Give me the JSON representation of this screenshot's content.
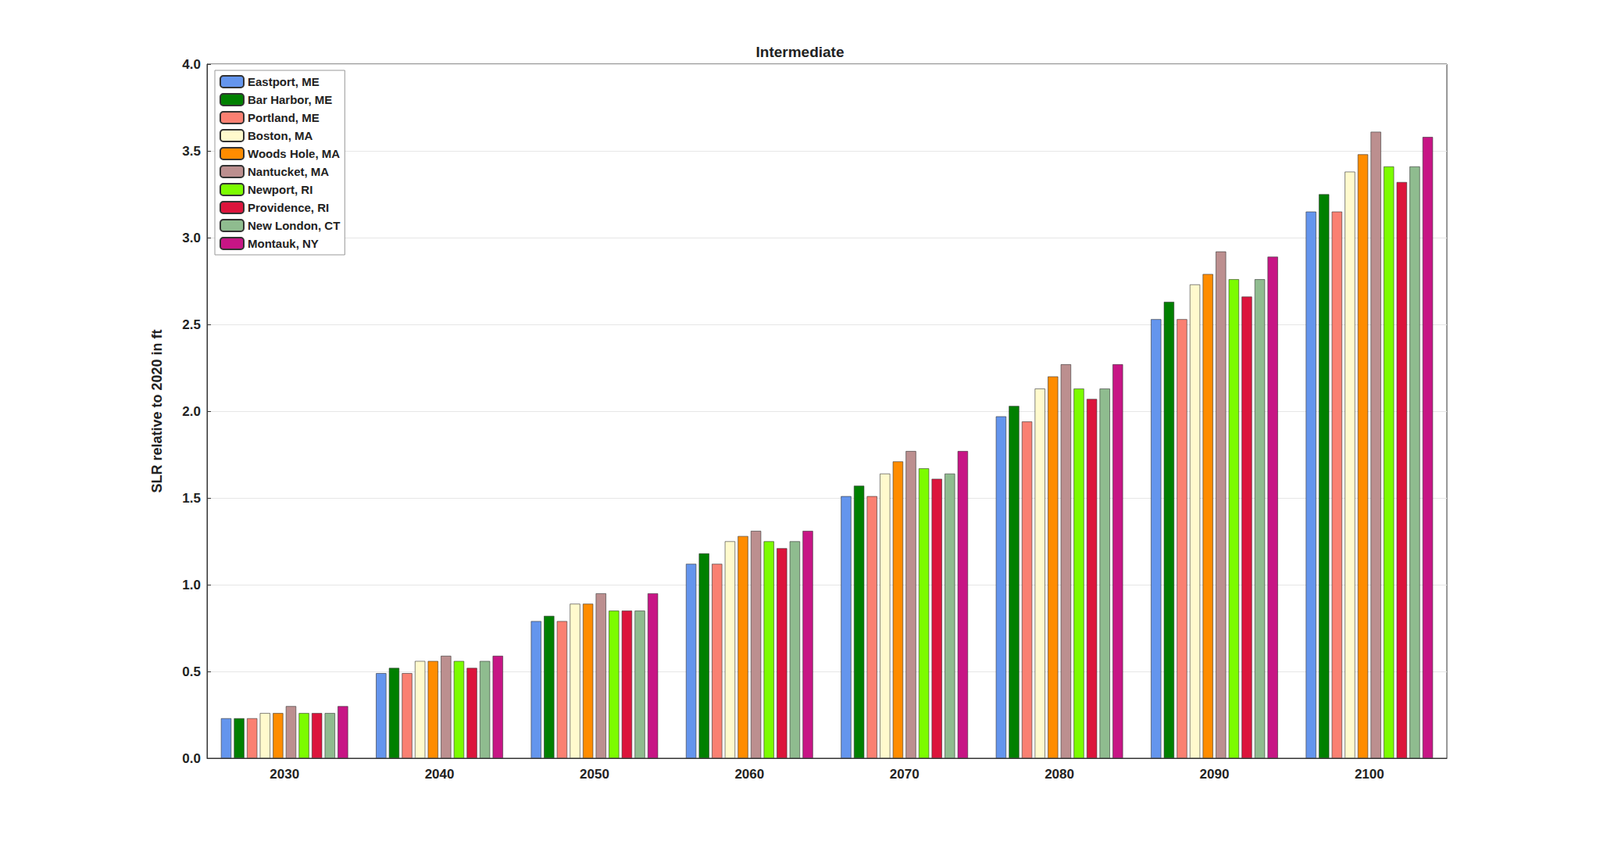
{
  "chart_data": {
    "type": "bar",
    "title": "Intermediate",
    "y_label": "SLR relative to 2020 in ft",
    "categories": [
      "2030",
      "2040",
      "2050",
      "2060",
      "2070",
      "2080",
      "2090",
      "2100"
    ],
    "series": [
      {
        "name": "Eastport, ME",
        "color": "#6495ED",
        "values": [
          0.23,
          0.49,
          0.79,
          1.12,
          1.51,
          1.97,
          2.53,
          3.15
        ]
      },
      {
        "name": "Bar Harbor, ME",
        "color": "#008000",
        "values": [
          0.23,
          0.52,
          0.82,
          1.18,
          1.57,
          2.03,
          2.63,
          3.25
        ]
      },
      {
        "name": "Portland, ME",
        "color": "#FA8072",
        "values": [
          0.23,
          0.49,
          0.79,
          1.12,
          1.51,
          1.94,
          2.53,
          3.15
        ]
      },
      {
        "name": "Boston, MA",
        "color": "#FFFACD",
        "values": [
          0.26,
          0.56,
          0.89,
          1.25,
          1.64,
          2.13,
          2.73,
          3.38
        ]
      },
      {
        "name": "Woods Hole, MA",
        "color": "#FF8C00",
        "values": [
          0.26,
          0.56,
          0.89,
          1.28,
          1.71,
          2.2,
          2.79,
          3.48
        ]
      },
      {
        "name": "Nantucket, MA",
        "color": "#BC8F8F",
        "values": [
          0.3,
          0.59,
          0.95,
          1.31,
          1.77,
          2.27,
          2.92,
          3.61
        ]
      },
      {
        "name": "Newport, RI",
        "color": "#7CFC00",
        "values": [
          0.26,
          0.56,
          0.85,
          1.25,
          1.67,
          2.13,
          2.76,
          3.41
        ]
      },
      {
        "name": "Providence, RI",
        "color": "#DC143C",
        "values": [
          0.26,
          0.52,
          0.85,
          1.21,
          1.61,
          2.07,
          2.66,
          3.32
        ]
      },
      {
        "name": "New London, CT",
        "color": "#8FBC8F",
        "values": [
          0.26,
          0.56,
          0.85,
          1.25,
          1.64,
          2.13,
          2.76,
          3.41
        ]
      },
      {
        "name": "Montauk, NY",
        "color": "#C71585",
        "values": [
          0.3,
          0.59,
          0.95,
          1.31,
          1.77,
          2.27,
          2.89,
          3.58
        ]
      }
    ],
    "ylim": [
      0,
      4
    ],
    "yticks": [
      {
        "value": 0,
        "label": "0.0"
      },
      {
        "value": 0.5,
        "label": "0.5"
      },
      {
        "value": 1,
        "label": "1.0"
      },
      {
        "value": 1.5,
        "label": "1.5"
      },
      {
        "value": 2,
        "label": "2.0"
      },
      {
        "value": 2.5,
        "label": "2.5"
      },
      {
        "value": 3,
        "label": "3.0"
      },
      {
        "value": 3.5,
        "label": "3.5"
      },
      {
        "value": 4,
        "label": "4.0"
      }
    ],
    "grid": true,
    "legend": "upper left"
  }
}
